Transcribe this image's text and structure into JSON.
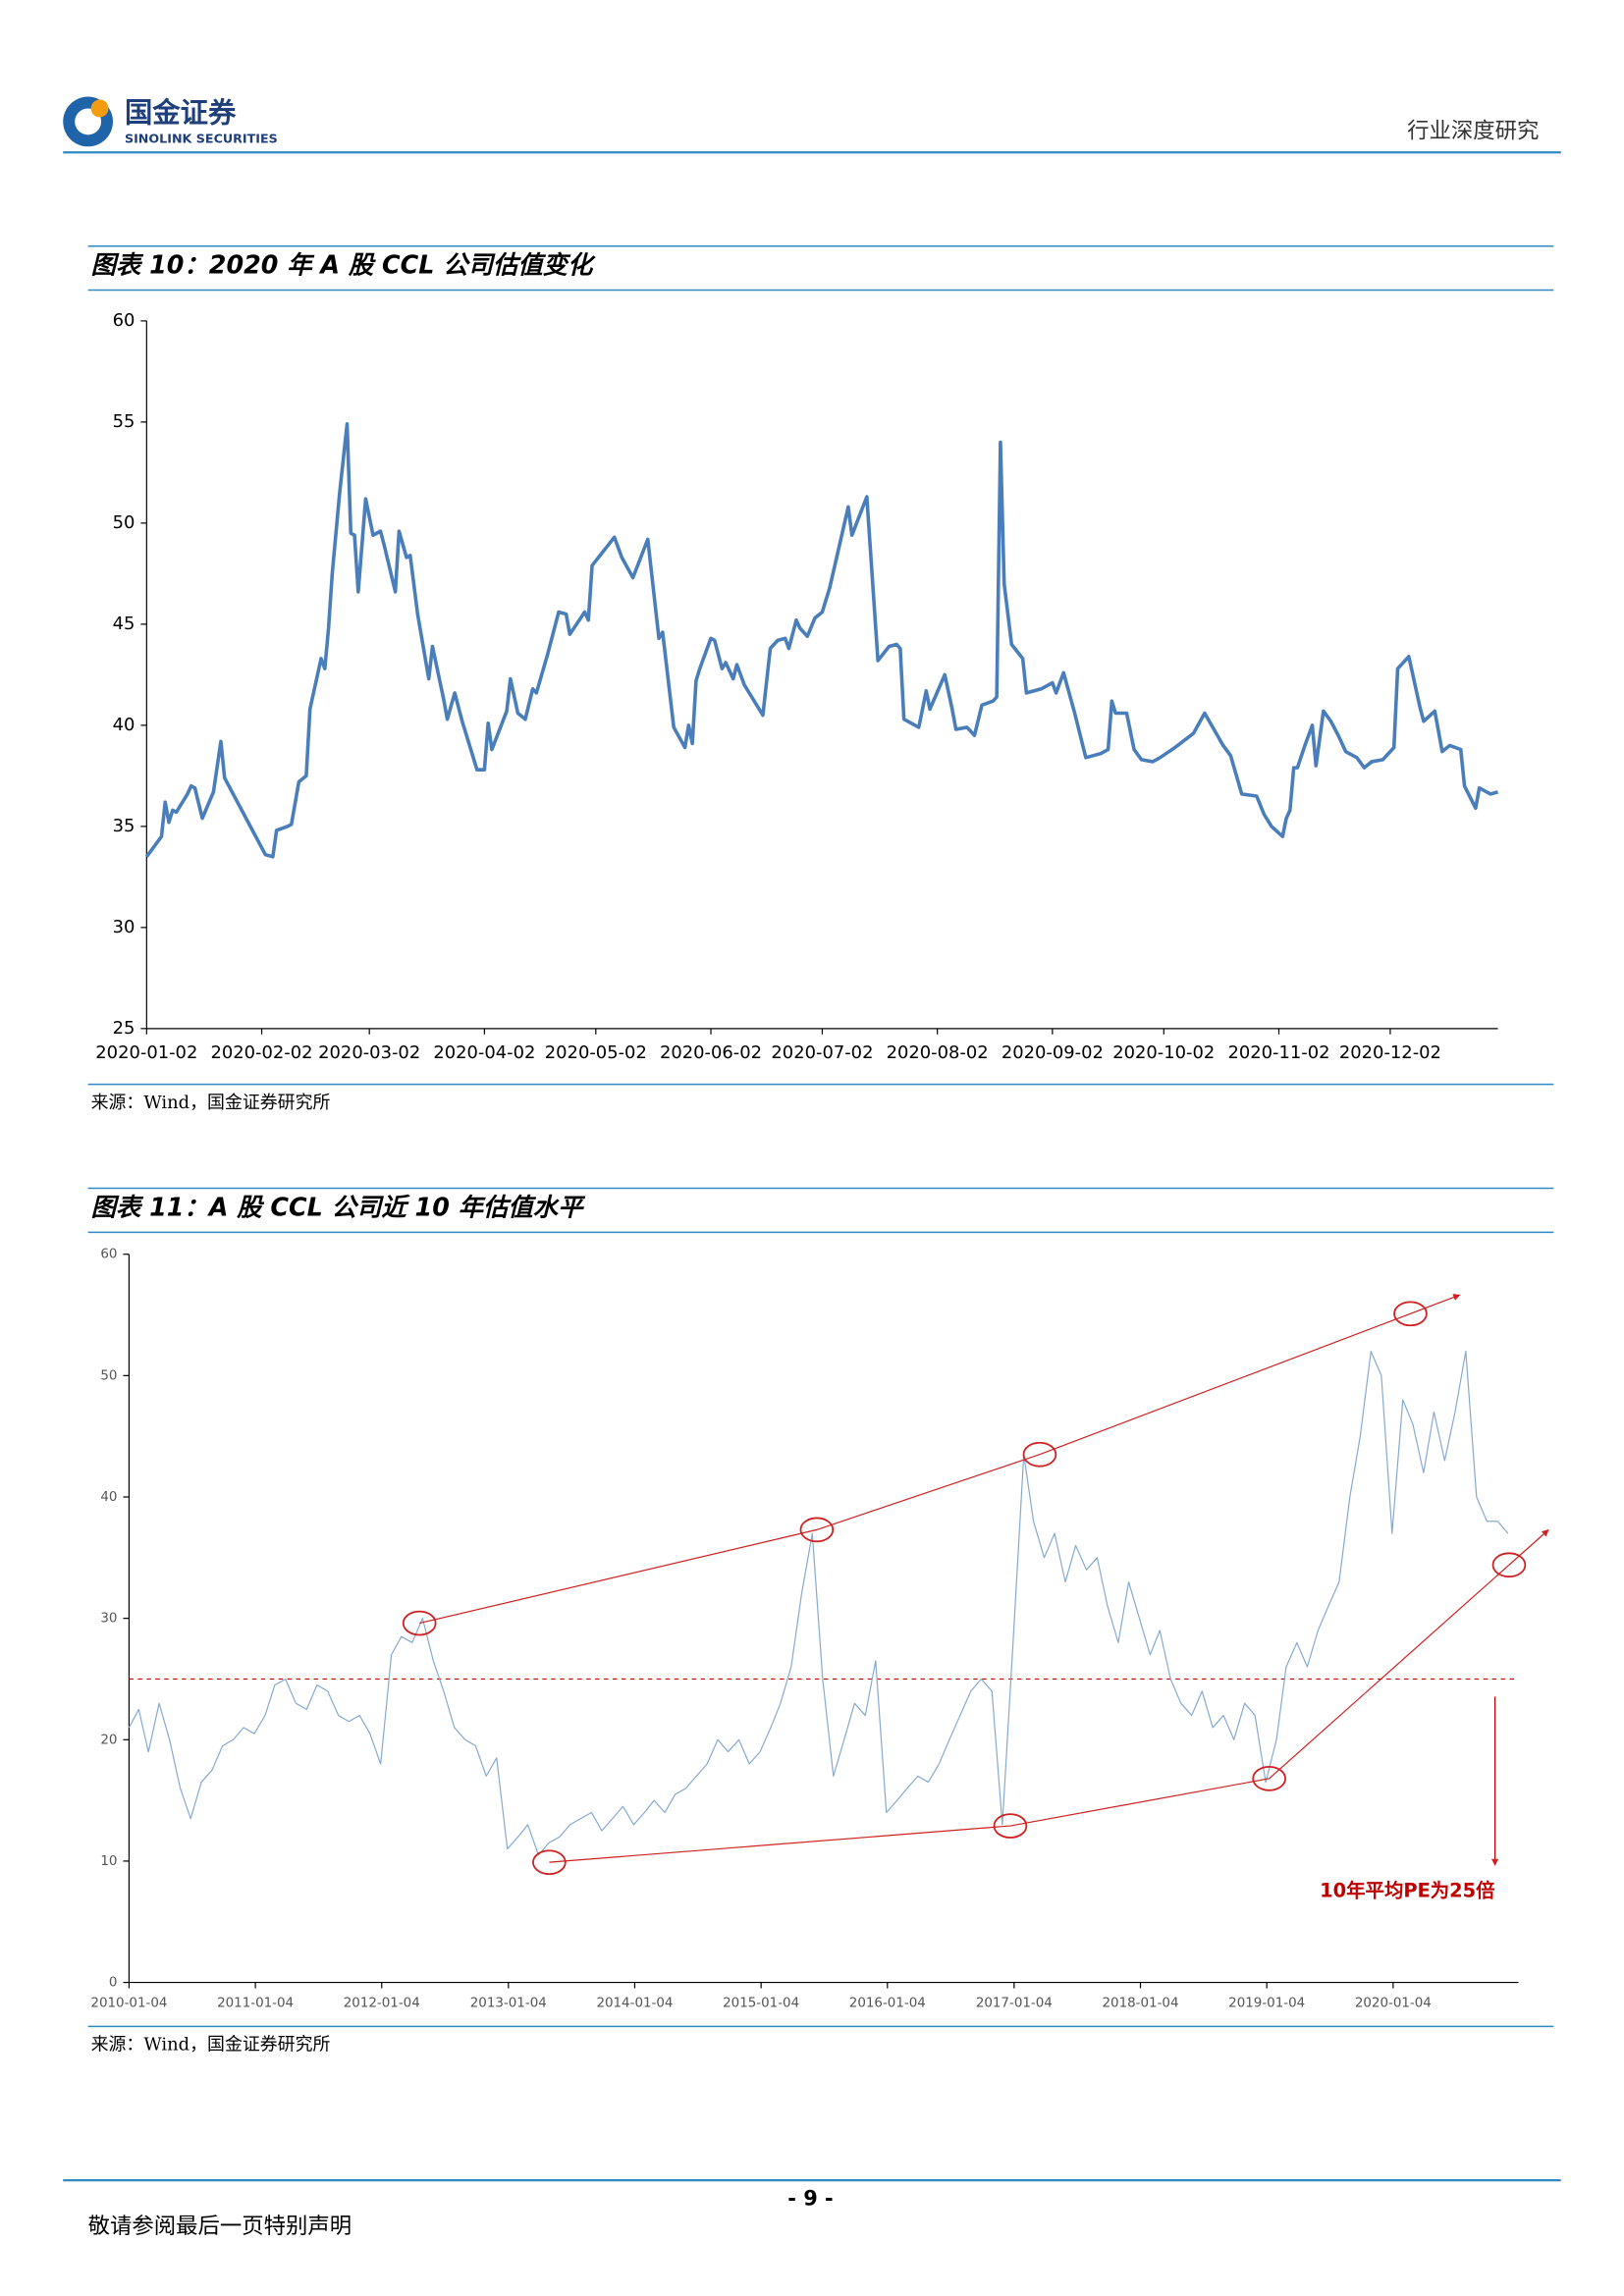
{
  "header": {
    "company_cn": "国金证券",
    "company_en": "SINOLINK SECURITIES",
    "report_type": "行业深度研究"
  },
  "chart_data": [
    {
      "type": "line",
      "title": "图表 10：2020 年 A 股 CCL 公司估值变化",
      "source": "来源：Wind，国金证券研究所",
      "x": [
        "2020-01-02",
        "2020-01-06",
        "2020-01-07",
        "2020-01-08",
        "2020-01-09",
        "2020-01-10",
        "2020-01-13",
        "2020-01-14",
        "2020-01-15",
        "2020-01-17",
        "2020-01-20",
        "2020-01-22",
        "2020-01-23",
        "2020-02-03",
        "2020-02-05",
        "2020-02-06",
        "2020-02-09",
        "2020-02-10",
        "2020-02-12",
        "2020-02-14",
        "2020-02-15",
        "2020-02-18",
        "2020-02-19",
        "2020-02-20",
        "2020-02-21",
        "2020-02-23",
        "2020-02-25",
        "2020-02-26",
        "2020-02-27",
        "2020-02-28",
        "2020-03-01",
        "2020-03-03",
        "2020-03-05",
        "2020-03-06",
        "2020-03-09",
        "2020-03-10",
        "2020-03-12",
        "2020-03-13",
        "2020-03-15",
        "2020-03-18",
        "2020-03-19",
        "2020-03-22",
        "2020-03-23",
        "2020-03-25",
        "2020-03-27",
        "2020-03-31",
        "2020-04-02",
        "2020-04-03",
        "2020-04-04",
        "2020-04-08",
        "2020-04-09",
        "2020-04-11",
        "2020-04-13",
        "2020-04-15",
        "2020-04-16",
        "2020-04-19",
        "2020-04-22",
        "2020-04-24",
        "2020-04-25",
        "2020-04-29",
        "2020-04-30",
        "2020-05-01",
        "2020-05-07",
        "2020-05-09",
        "2020-05-12",
        "2020-05-16",
        "2020-05-19",
        "2020-05-20",
        "2020-05-23",
        "2020-05-26",
        "2020-05-27",
        "2020-05-28",
        "2020-05-29",
        "2020-05-30",
        "2020-06-02",
        "2020-06-03",
        "2020-06-05",
        "2020-06-06",
        "2020-06-08",
        "2020-06-09",
        "2020-06-11",
        "2020-06-16",
        "2020-06-18",
        "2020-06-20",
        "2020-06-22",
        "2020-06-23",
        "2020-06-25",
        "2020-06-26",
        "2020-06-28",
        "2020-06-30",
        "2020-07-02",
        "2020-07-04",
        "2020-07-06",
        "2020-07-09",
        "2020-07-10",
        "2020-07-14",
        "2020-07-17",
        "2020-07-20",
        "2020-07-22",
        "2020-07-23",
        "2020-07-24",
        "2020-07-28",
        "2020-07-30",
        "2020-07-31",
        "2020-08-04",
        "2020-08-06",
        "2020-08-07",
        "2020-08-10",
        "2020-08-12",
        "2020-08-14",
        "2020-08-17",
        "2020-08-18",
        "2020-08-19",
        "2020-08-20",
        "2020-08-22",
        "2020-08-25",
        "2020-08-26",
        "2020-08-30",
        "2020-09-02",
        "2020-09-03",
        "2020-09-05",
        "2020-09-08",
        "2020-09-11",
        "2020-09-15",
        "2020-09-17",
        "2020-09-18",
        "2020-09-19",
        "2020-09-22",
        "2020-09-24",
        "2020-09-26",
        "2020-09-29",
        "2020-10-01",
        "2020-10-05",
        "2020-10-10",
        "2020-10-13",
        "2020-10-18",
        "2020-10-20",
        "2020-10-23",
        "2020-10-27",
        "2020-10-29",
        "2020-10-31",
        "2020-11-03",
        "2020-11-04",
        "2020-11-05",
        "2020-11-06",
        "2020-11-07",
        "2020-11-09",
        "2020-11-11",
        "2020-11-12",
        "2020-11-14",
        "2020-11-16",
        "2020-11-18",
        "2020-11-20",
        "2020-11-23",
        "2020-11-25",
        "2020-11-27",
        "2020-11-30",
        "2020-12-03",
        "2020-12-04",
        "2020-12-07",
        "2020-12-10",
        "2020-12-11",
        "2020-12-14",
        "2020-12-16",
        "2020-12-18",
        "2020-12-21",
        "2020-12-22",
        "2020-12-25",
        "2020-12-26",
        "2020-12-29",
        "2020-12-31"
      ],
      "series": [
        {
          "color": "#4a7ebb",
          "values": [
            33.5,
            34.5,
            36.2,
            35.2,
            35.8,
            35.7,
            36.6,
            37.0,
            36.9,
            35.4,
            36.7,
            39.2,
            37.4,
            33.6,
            33.5,
            34.8,
            35.0,
            35.1,
            37.2,
            37.5,
            40.8,
            43.3,
            42.8,
            44.8,
            47.5,
            51.5,
            54.9,
            49.5,
            49.4,
            46.6,
            51.2,
            49.4,
            49.6,
            48.9,
            46.6,
            49.6,
            48.3,
            48.4,
            45.5,
            42.3,
            43.9,
            41.3,
            40.3,
            41.6,
            40.2,
            37.8,
            37.8,
            40.1,
            38.8,
            40.7,
            42.3,
            40.6,
            40.3,
            41.8,
            41.6,
            43.5,
            45.6,
            45.5,
            44.5,
            45.6,
            45.2,
            47.9,
            49.3,
            48.3,
            47.3,
            49.2,
            44.3,
            44.6,
            39.9,
            38.9,
            40.0,
            39.1,
            42.2,
            42.8,
            44.3,
            44.2,
            42.8,
            43.1,
            42.3,
            43.0,
            42.0,
            40.5,
            43.8,
            44.2,
            44.3,
            43.8,
            45.2,
            44.8,
            44.4,
            45.3,
            45.6,
            46.8,
            48.4,
            50.8,
            49.4,
            51.3,
            43.2,
            43.9,
            44.0,
            43.8,
            40.3,
            39.9,
            41.7,
            40.8,
            42.5,
            40.8,
            39.8,
            39.9,
            39.5,
            41.0,
            41.2,
            41.4,
            54.0,
            47.0,
            44.0,
            43.3,
            41.6,
            41.8,
            42.1,
            41.6,
            42.6,
            40.6,
            38.4,
            38.6,
            38.8,
            41.2,
            40.6,
            40.6,
            38.8,
            38.3,
            38.2,
            38.4,
            38.9,
            39.6,
            40.6,
            39.0,
            38.5,
            36.6,
            36.5,
            35.6,
            35.0,
            34.5,
            35.4,
            35.8,
            37.9,
            37.9,
            39.0,
            40.0,
            38.0,
            40.7,
            40.2,
            39.5,
            38.7,
            38.4,
            37.9,
            38.2,
            38.3,
            38.9,
            42.8,
            43.4,
            40.9,
            40.2,
            40.7,
            38.7,
            39.0,
            38.8,
            37.0,
            35.9,
            36.9,
            36.6,
            36.7
          ]
        }
      ],
      "xlim": [
        "2020-01-02",
        "2020-12-31"
      ],
      "xticks": [
        "2020-01-02",
        "2020-02-02",
        "2020-03-02",
        "2020-04-02",
        "2020-05-02",
        "2020-06-02",
        "2020-07-02",
        "2020-08-02",
        "2020-09-02",
        "2020-10-02",
        "2020-11-02",
        "2020-12-02"
      ],
      "ylim": [
        25,
        60
      ],
      "yticks": [
        25,
        30,
        35,
        40,
        45,
        50,
        55,
        60
      ]
    },
    {
      "type": "line",
      "title": "图表 11：A 股 CCL 公司近 10 年估值水平",
      "source": "来源：Wind，国金证券研究所",
      "x": [
        "2010-01-04",
        "2010-02-01",
        "2010-03-01",
        "2010-04-01",
        "2010-05-01",
        "2010-06-01",
        "2010-07-01",
        "2010-08-01",
        "2010-09-01",
        "2010-10-01",
        "2010-11-01",
        "2010-12-01",
        "2011-01-01",
        "2011-02-01",
        "2011-03-01",
        "2011-04-01",
        "2011-05-01",
        "2011-06-01",
        "2011-07-01",
        "2011-08-01",
        "2011-09-01",
        "2011-10-01",
        "2011-11-01",
        "2011-12-01",
        "2012-01-01",
        "2012-02-01",
        "2012-03-01",
        "2012-04-01",
        "2012-05-01",
        "2012-06-01",
        "2012-07-01",
        "2012-08-01",
        "2012-09-01",
        "2012-10-01",
        "2012-11-01",
        "2012-12-01",
        "2013-01-01",
        "2013-02-01",
        "2013-03-01",
        "2013-04-01",
        "2013-05-01",
        "2013-06-01",
        "2013-07-01",
        "2013-08-01",
        "2013-09-01",
        "2013-10-01",
        "2013-11-01",
        "2013-12-01",
        "2014-01-01",
        "2014-02-01",
        "2014-03-01",
        "2014-04-01",
        "2014-05-01",
        "2014-06-01",
        "2014-07-01",
        "2014-08-01",
        "2014-09-01",
        "2014-10-01",
        "2014-11-01",
        "2014-12-01",
        "2015-01-01",
        "2015-02-01",
        "2015-03-01",
        "2015-04-01",
        "2015-05-01",
        "2015-06-01",
        "2015-07-01",
        "2015-08-01",
        "2015-09-01",
        "2015-10-01",
        "2015-11-01",
        "2015-12-01",
        "2016-01-01",
        "2016-02-01",
        "2016-03-01",
        "2016-04-01",
        "2016-05-01",
        "2016-06-01",
        "2016-07-01",
        "2016-08-01",
        "2016-09-01",
        "2016-10-01",
        "2016-11-01",
        "2016-12-01",
        "2017-01-01",
        "2017-02-01",
        "2017-03-01",
        "2017-04-01",
        "2017-05-01",
        "2017-06-01",
        "2017-07-01",
        "2017-08-01",
        "2017-09-01",
        "2017-10-01",
        "2017-11-01",
        "2017-12-01",
        "2018-01-01",
        "2018-02-01",
        "2018-03-01",
        "2018-04-01",
        "2018-05-01",
        "2018-06-01",
        "2018-07-01",
        "2018-08-01",
        "2018-09-01",
        "2018-10-01",
        "2018-11-01",
        "2018-12-01",
        "2019-01-01",
        "2019-02-01",
        "2019-03-01",
        "2019-04-01",
        "2019-05-01",
        "2019-06-01",
        "2019-07-01",
        "2019-08-01",
        "2019-09-01",
        "2019-10-01",
        "2019-11-01",
        "2019-12-01",
        "2020-01-01",
        "2020-02-01",
        "2020-03-01",
        "2020-04-01",
        "2020-05-01",
        "2020-06-01",
        "2020-07-01",
        "2020-08-01",
        "2020-09-01",
        "2020-10-01",
        "2020-11-01",
        "2020-12-01"
      ],
      "series": [
        {
          "color": "#86a9d0",
          "values": [
            21,
            22.5,
            19,
            23,
            20,
            16,
            13.5,
            16.5,
            17.5,
            19.5,
            20,
            21,
            20.5,
            22,
            24.5,
            25,
            23,
            22.5,
            24.5,
            24,
            22,
            21.5,
            22,
            20.5,
            18,
            27,
            28.5,
            28,
            30,
            26.5,
            24,
            21,
            20,
            19.5,
            17,
            18.5,
            11,
            12,
            13,
            10.5,
            11.5,
            12,
            13,
            13.5,
            14,
            12.5,
            13.5,
            14.5,
            13,
            14,
            15,
            14,
            15.5,
            16,
            17,
            18,
            20,
            19,
            20,
            18,
            19,
            21,
            23,
            26,
            32,
            37,
            25,
            17,
            20,
            23,
            22,
            26.5,
            14,
            15,
            16,
            17,
            16.5,
            18,
            20,
            22,
            24,
            25,
            24,
            13,
            28,
            43.5,
            38,
            35,
            37,
            33,
            36,
            34,
            35,
            31,
            28,
            33,
            30,
            27,
            29,
            25,
            23,
            22,
            24,
            21,
            22,
            20,
            23,
            22,
            16.5,
            20,
            26,
            28,
            26,
            29,
            31,
            33,
            40,
            45,
            52,
            50,
            37,
            48,
            46,
            42,
            47,
            43,
            47,
            52,
            40,
            38,
            38,
            37
          ]
        }
      ],
      "xlim": [
        "2010-01-04",
        "2020-12-31"
      ],
      "xticks": [
        "2010-01-04",
        "2011-01-04",
        "2012-01-04",
        "2013-01-04",
        "2014-01-04",
        "2015-01-04",
        "2016-01-04",
        "2017-01-04",
        "2018-01-04",
        "2019-01-04",
        "2020-01-04"
      ],
      "ylim": [
        0,
        60
      ],
      "yticks": [
        0,
        10,
        20,
        30,
        40,
        50,
        60
      ],
      "reference_line": {
        "value": 25,
        "label": "10年平均PE为25倍",
        "color": "#c00000"
      },
      "trend_lines": [
        {
          "color": "#d02020",
          "points": [
            {
              "x": "2012-04-22",
              "y": 29.6
            },
            {
              "x": "2015-06-14",
              "y": 37.3
            },
            {
              "x": "2017-03-19",
              "y": 43.5
            },
            {
              "x": "2020-02-23",
              "y": 55.1
            }
          ]
        },
        {
          "color": "#d02020",
          "points": [
            {
              "x": "2013-05-02",
              "y": 9.9
            },
            {
              "x": "2016-12-24",
              "y": 12.9
            },
            {
              "x": "2019-01-11",
              "y": 16.8
            },
            {
              "x": "2020-12-04",
              "y": 34.4
            }
          ]
        }
      ]
    }
  ],
  "footer": {
    "page": "- 9 -",
    "disclaimer": "敬请参阅最后一页特别声明"
  }
}
